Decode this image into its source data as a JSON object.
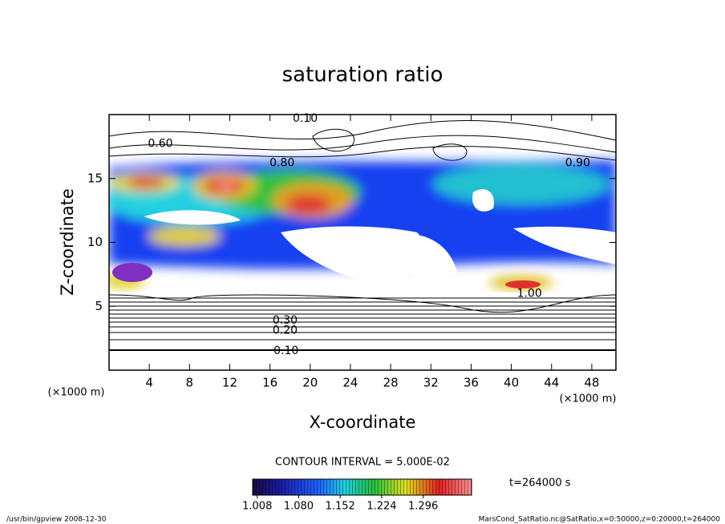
{
  "chart_data": {
    "type": "contour",
    "title": "saturation ratio",
    "x_label": "X-coordinate",
    "y_label": "Z-coordinate",
    "x_unit_label": "(×1000 m)",
    "y_unit_label": "(×1000 m)",
    "xlim": [
      0,
      50.4
    ],
    "ylim": [
      0,
      20
    ],
    "xticks": [
      4,
      8,
      12,
      16,
      20,
      24,
      28,
      32,
      36,
      40,
      44,
      48
    ],
    "yticks": [
      5,
      10,
      15
    ],
    "contour_interval_label": "CONTOUR INTERVAL = 5.000E-02",
    "time_label": "t=264000 s",
    "colorbar": {
      "clim": [
        1.0,
        1.38
      ],
      "ticks": [
        1.008,
        {
          "value": 1.08,
          "label": "1.080"
        },
        1.152,
        1.224,
        1.296
      ]
    },
    "annotations": [
      {
        "text": "0.10",
        "x": 17.6,
        "y": 1.5
      },
      {
        "text": "0.20",
        "x": 17.5,
        "y": 3.1
      },
      {
        "text": "0.30",
        "x": 17.5,
        "y": 3.9
      },
      {
        "text": "0.60",
        "x": 5.1,
        "y": 17.7
      },
      {
        "text": "0.80",
        "x": 17.2,
        "y": 16.2
      },
      {
        "text": "1.00",
        "x": 41.8,
        "y": 6.0
      },
      {
        "text": "0.90",
        "x": 46.6,
        "y": 16.2
      },
      {
        "text": "0.10",
        "x": 19.5,
        "y": 19.7
      }
    ],
    "footer_left": "/usr/bin/gpview   2008-12-30",
    "footer_right": "MarsCond_SatRatio.nc@SatRatio,x=0:50000,z=0:20000,t=264000"
  }
}
